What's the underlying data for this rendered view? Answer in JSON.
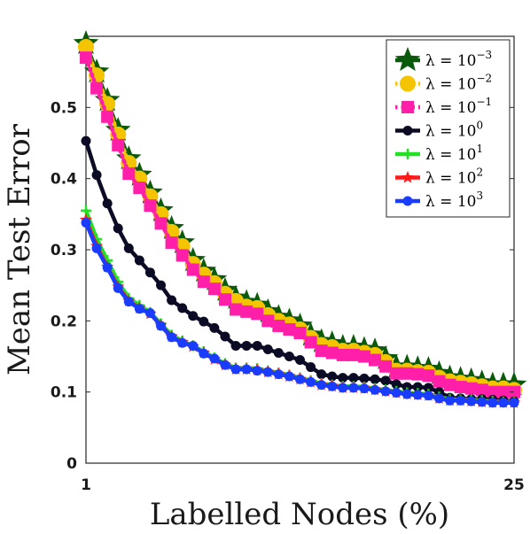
{
  "chart_data": {
    "type": "line",
    "xlabel": "Labelled Nodes (%)",
    "ylabel": "Mean Test Error",
    "xlim": [
      1,
      25
    ],
    "ylim": [
      0,
      0.6
    ],
    "x_ticks": [
      "1",
      "25"
    ],
    "y_ticks": [
      "0",
      "0.1",
      "0.2",
      "0.3",
      "0.4",
      "0.5"
    ],
    "grid": false,
    "legend_position": "top-right",
    "x": [
      1,
      1.6,
      2.2,
      2.8,
      3.4,
      4,
      4.6,
      5.2,
      5.8,
      6.4,
      7,
      7.6,
      8.2,
      8.8,
      9.4,
      10,
      10.6,
      11.2,
      11.8,
      12.4,
      13,
      13.6,
      14.2,
      14.8,
      15.4,
      16,
      16.6,
      17.2,
      17.8,
      18.4,
      19,
      19.6,
      20.2,
      20.8,
      21.4,
      22,
      22.6,
      23.2,
      23.8,
      24.4,
      25
    ],
    "series": [
      {
        "name": "λ = 10^-3",
        "legend_base": "λ = 10",
        "legend_exp": "−3",
        "color": "#0b5a0b",
        "marker": "star-big",
        "dash": "solid",
        "values": [
          0.59,
          0.55,
          0.51,
          0.468,
          0.428,
          0.405,
          0.38,
          0.355,
          0.33,
          0.31,
          0.285,
          0.27,
          0.258,
          0.243,
          0.232,
          0.226,
          0.222,
          0.213,
          0.205,
          0.2,
          0.193,
          0.18,
          0.171,
          0.168,
          0.163,
          0.163,
          0.16,
          0.158,
          0.147,
          0.135,
          0.135,
          0.133,
          0.132,
          0.126,
          0.12,
          0.118,
          0.116,
          0.113,
          0.11,
          0.11,
          0.11
        ]
      },
      {
        "name": "λ = 10^-2",
        "legend_base": "λ = 10",
        "legend_exp": "−2",
        "color": "#f5c400",
        "marker": "circle-big",
        "dash": "dot",
        "values": [
          0.585,
          0.545,
          0.505,
          0.462,
          0.422,
          0.4,
          0.375,
          0.35,
          0.325,
          0.305,
          0.28,
          0.265,
          0.253,
          0.238,
          0.228,
          0.22,
          0.218,
          0.208,
          0.2,
          0.195,
          0.188,
          0.176,
          0.166,
          0.163,
          0.158,
          0.158,
          0.155,
          0.152,
          0.142,
          0.13,
          0.13,
          0.128,
          0.127,
          0.12,
          0.115,
          0.113,
          0.111,
          0.108,
          0.105,
          0.105,
          0.103
        ]
      },
      {
        "name": "λ = 10^-1",
        "legend_base": "λ = 10",
        "legend_exp": "−1",
        "color": "#ff1fa8",
        "marker": "square",
        "dash": "dot",
        "values": [
          0.57,
          0.527,
          0.487,
          0.447,
          0.407,
          0.387,
          0.362,
          0.337,
          0.31,
          0.292,
          0.272,
          0.255,
          0.245,
          0.23,
          0.216,
          0.213,
          0.21,
          0.2,
          0.193,
          0.188,
          0.183,
          0.17,
          0.158,
          0.155,
          0.152,
          0.152,
          0.15,
          0.145,
          0.136,
          0.126,
          0.126,
          0.125,
          0.123,
          0.115,
          0.11,
          0.107,
          0.105,
          0.103,
          0.1,
          0.1,
          0.1
        ]
      },
      {
        "name": "λ = 10^0",
        "legend_base": "λ = 10",
        "legend_exp": "0",
        "color": "#0b0b26",
        "marker": "circle",
        "dash": "solid",
        "values": [
          0.453,
          0.405,
          0.365,
          0.33,
          0.302,
          0.285,
          0.268,
          0.25,
          0.229,
          0.218,
          0.207,
          0.199,
          0.19,
          0.178,
          0.165,
          0.165,
          0.165,
          0.16,
          0.155,
          0.15,
          0.145,
          0.135,
          0.125,
          0.122,
          0.12,
          0.12,
          0.119,
          0.118,
          0.116,
          0.111,
          0.107,
          0.107,
          0.106,
          0.1,
          0.092,
          0.091,
          0.09,
          0.09,
          0.089,
          0.088,
          0.087
        ]
      },
      {
        "name": "λ = 10^1",
        "legend_base": "λ = 10",
        "legend_exp": "1",
        "color": "#22e022",
        "marker": "plus",
        "dash": "solid",
        "values": [
          0.355,
          0.315,
          0.285,
          0.255,
          0.232,
          0.222,
          0.212,
          0.196,
          0.18,
          0.172,
          0.165,
          0.157,
          0.148,
          0.14,
          0.134,
          0.134,
          0.133,
          0.13,
          0.127,
          0.124,
          0.12,
          0.116,
          0.112,
          0.11,
          0.108,
          0.108,
          0.107,
          0.105,
          0.103,
          0.101,
          0.099,
          0.098,
          0.097,
          0.093,
          0.09,
          0.089,
          0.089,
          0.088,
          0.087,
          0.086,
          0.086
        ]
      },
      {
        "name": "λ = 10^2",
        "legend_base": "λ = 10",
        "legend_exp": "2",
        "color": "#ff1a1a",
        "marker": "star",
        "dash": "solid",
        "values": [
          0.342,
          0.305,
          0.276,
          0.248,
          0.228,
          0.218,
          0.21,
          0.194,
          0.178,
          0.17,
          0.164,
          0.155,
          0.146,
          0.138,
          0.132,
          0.132,
          0.131,
          0.128,
          0.125,
          0.122,
          0.118,
          0.114,
          0.11,
          0.108,
          0.106,
          0.106,
          0.105,
          0.103,
          0.101,
          0.099,
          0.097,
          0.096,
          0.095,
          0.091,
          0.088,
          0.088,
          0.087,
          0.086,
          0.085,
          0.085,
          0.085
        ]
      },
      {
        "name": "λ = 10^3",
        "legend_base": "λ = 10",
        "legend_exp": "3",
        "color": "#1a3cff",
        "marker": "circle",
        "dash": "solid",
        "values": [
          0.338,
          0.302,
          0.275,
          0.246,
          0.227,
          0.217,
          0.211,
          0.193,
          0.177,
          0.169,
          0.165,
          0.154,
          0.147,
          0.138,
          0.132,
          0.132,
          0.13,
          0.128,
          0.125,
          0.122,
          0.118,
          0.114,
          0.11,
          0.108,
          0.106,
          0.106,
          0.105,
          0.103,
          0.101,
          0.099,
          0.097,
          0.096,
          0.095,
          0.091,
          0.088,
          0.088,
          0.087,
          0.086,
          0.085,
          0.085,
          0.085
        ]
      }
    ]
  }
}
